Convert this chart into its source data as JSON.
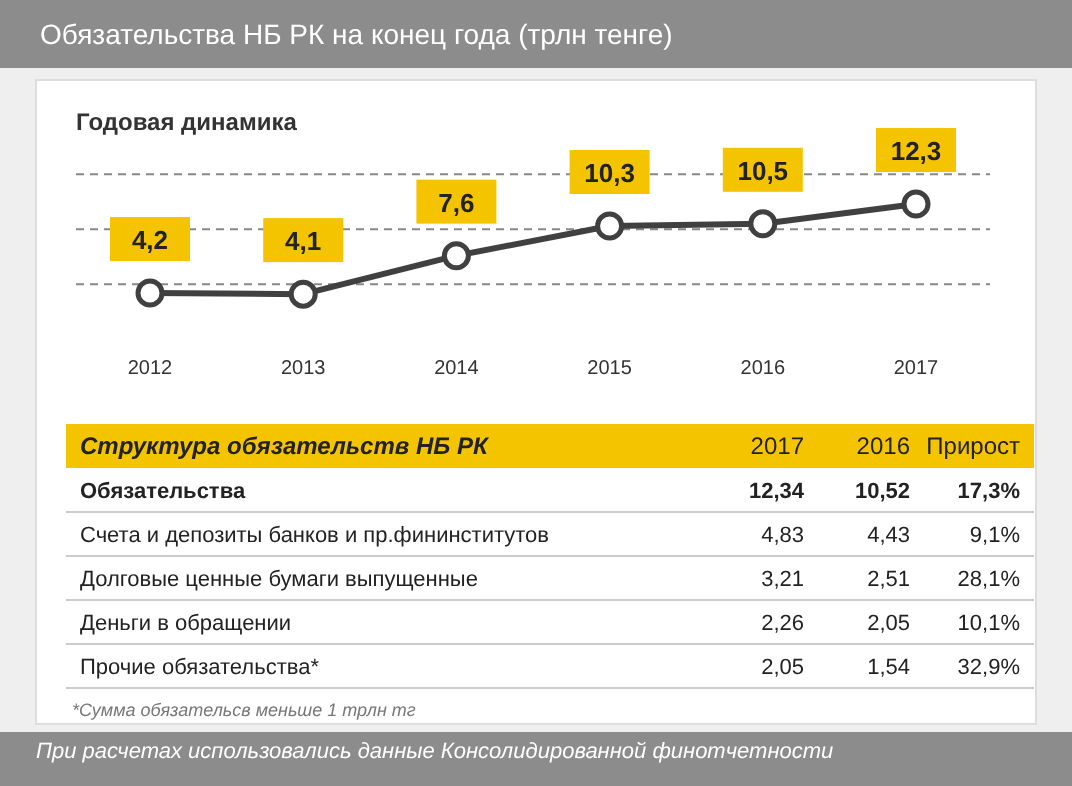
{
  "chart_data": [
    {
      "type": "line",
      "title": "Обязательства  НБ РК на конец года (трлн тенге)",
      "subtitle": "Годовая  динамика",
      "categories": [
        "2012",
        "2013",
        "2014",
        "2015",
        "2016",
        "2017"
      ],
      "series": [
        {
          "color": "#404040",
          "values": [
            4.2,
            4.1,
            7.6,
            10.3,
            10.5,
            12.3
          ],
          "value_labels": [
            "4,2",
            "4,1",
            "7,6",
            "10,3",
            "10,5",
            "12,3"
          ]
        }
      ],
      "ref_lines": [
        {
          "axis": "y",
          "value": 5,
          "color": "#888888",
          "line_style": "dashed"
        },
        {
          "axis": "y",
          "value": 10,
          "color": "#888888",
          "line_style": "dashed"
        },
        {
          "axis": "y",
          "value": 15,
          "color": "#888888",
          "line_style": "dashed"
        }
      ],
      "tick_labels": "x",
      "marker": "circle"
    },
    {
      "type": "other",
      "title": "Структура обязательств  НБ РК",
      "categories": [
        "Обязательства",
        "Счета и депозиты банков и пр.фининститутов",
        "Долговые ценные бумаги выпущенные",
        "Деньги в обращении",
        "Прочие обязательства*"
      ],
      "series": [
        {
          "name": "2017",
          "values": [
            12.34,
            4.83,
            3.21,
            2.26,
            2.05
          ],
          "value_labels": [
            "12,34",
            "4,83",
            "3,21",
            "2,26",
            "2,05"
          ]
        },
        {
          "name": "2016",
          "values": [
            10.52,
            4.43,
            2.51,
            2.05,
            1.54
          ],
          "value_labels": [
            "10,52",
            "4,43",
            "2,51",
            "2,05",
            "1,54"
          ]
        },
        {
          "name": "Прирост",
          "values": [
            17.3,
            9.1,
            28.1,
            10.1,
            32.9
          ],
          "value_labels": [
            "17,3%",
            "9,1%",
            "28,1%",
            "10,1%",
            "32,9%"
          ]
        }
      ],
      "annotations": [
        "*Сумма обязательсв меньше 1 трлн тг",
        "При расчетах использовались данные Консолидированной финотчетности"
      ]
    }
  ]
}
